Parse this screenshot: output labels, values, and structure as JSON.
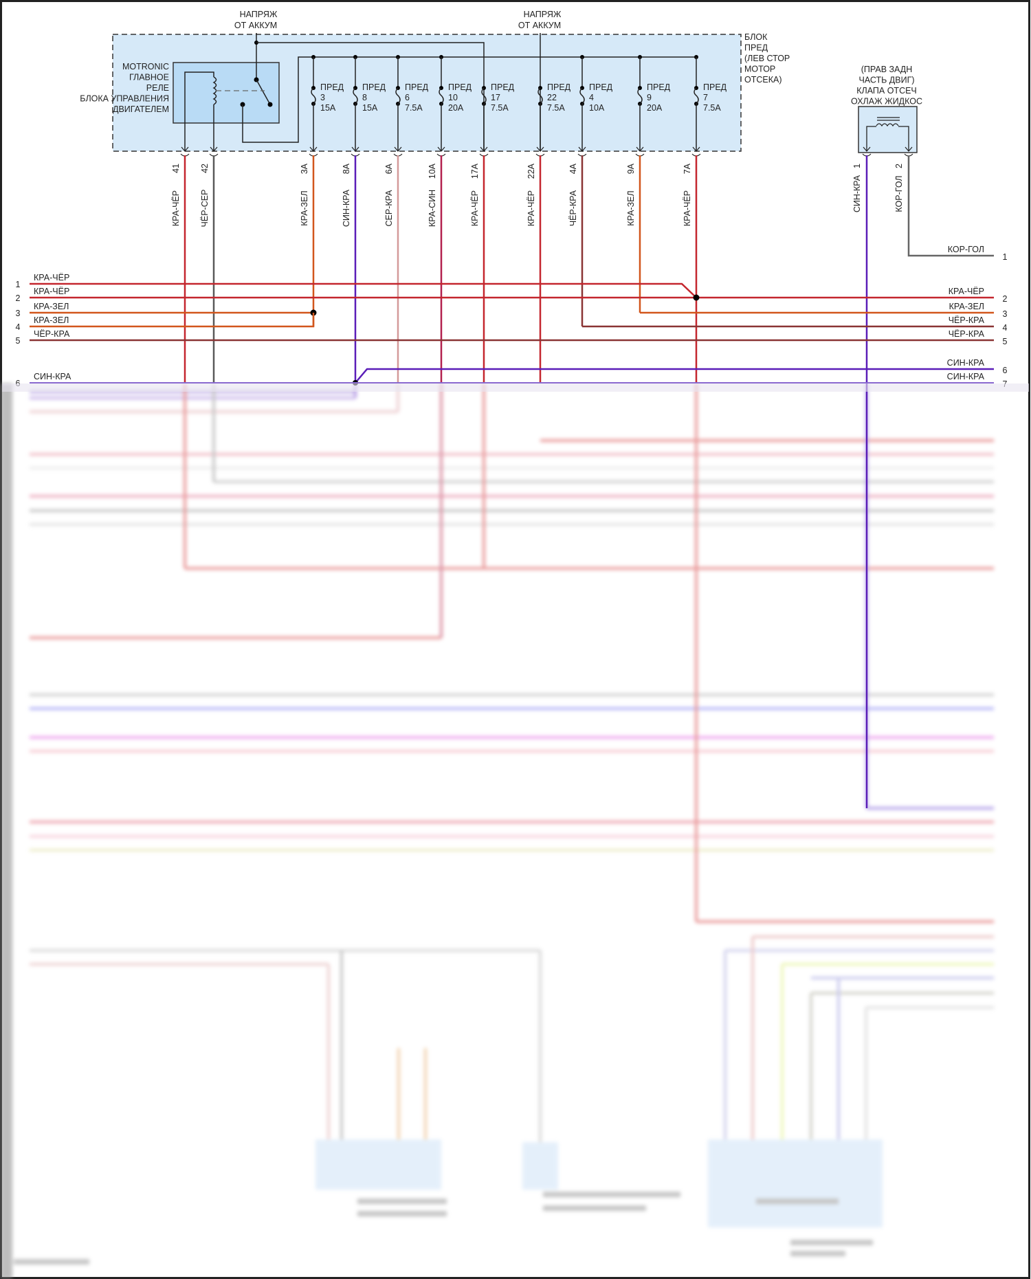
{
  "diagram": {
    "battery_feeds": [
      {
        "line1": "НАПРЯЖ",
        "line2": "ОТ АККУМ"
      },
      {
        "line1": "НАПРЯЖ",
        "line2": "ОТ АККУМ"
      }
    ],
    "relay_label": [
      "MOTRONIC",
      "ГЛАВНОЕ",
      "РЕЛЕ",
      "БЛОКА УПРАВЛЕНИЯ",
      "ДВИГАТЕЛЕМ"
    ],
    "fuse_block_label": [
      "БЛОК",
      "ПРЕД",
      "(ЛЕВ СТОР",
      "МОТОР",
      "ОТСЕКА)"
    ],
    "fuses": [
      {
        "name": "ПРЕД",
        "number": "3",
        "rating": "15A"
      },
      {
        "name": "ПРЕД",
        "number": "8",
        "rating": "15A"
      },
      {
        "name": "ПРЕД",
        "number": "6",
        "rating": "7.5A"
      },
      {
        "name": "ПРЕД",
        "number": "10",
        "rating": "20A"
      },
      {
        "name": "ПРЕД",
        "number": "17",
        "rating": "7.5A"
      },
      {
        "name": "ПРЕД",
        "number": "22",
        "rating": "7.5A"
      },
      {
        "name": "ПРЕД",
        "number": "4",
        "rating": "10A"
      },
      {
        "name": "ПРЕД",
        "number": "9",
        "rating": "20A"
      },
      {
        "name": "ПРЕД",
        "number": "7",
        "rating": "7.5A"
      }
    ],
    "block_wires": [
      {
        "pin": "41",
        "label": "КРА-ЧЁР",
        "color": "#c4262e"
      },
      {
        "pin": "42",
        "label": "ЧЁР-СЕР",
        "color": "#5a5a5a"
      },
      {
        "pin": "3A",
        "label": "КРА-ЗЕЛ",
        "color": "#d2561c"
      },
      {
        "pin": "8A",
        "label": "СИН-КРА",
        "color": "#5a1db8"
      },
      {
        "pin": "6A",
        "label": "СЕР-КРА",
        "color": "#d49a9a"
      },
      {
        "pin": "10A",
        "label": "КРА-СИН",
        "color": "#b3204e"
      },
      {
        "pin": "17A",
        "label": "КРА-ЧЁР",
        "color": "#c4262e"
      },
      {
        "pin": "22A",
        "label": "КРА-ЧЁР",
        "color": "#c4262e"
      },
      {
        "pin": "4A",
        "label": "ЧЁР-КРА",
        "color": "#8a3434"
      },
      {
        "pin": "9A",
        "label": "КРА-ЗЕЛ",
        "color": "#d2561c"
      },
      {
        "pin": "7A",
        "label": "КРА-ЧЁР",
        "color": "#c4262e"
      }
    ],
    "valve": {
      "label": [
        "(ПРАВ ЗАДН",
        "ЧАСТЬ ДВИГ)",
        "КЛАПА ОТСЕЧ",
        "ОХЛАЖ ЖИДКОС"
      ],
      "wires": [
        {
          "pin": "1",
          "label": "СИН-КРА",
          "color": "#5a1db8"
        },
        {
          "pin": "2",
          "label": "КОР-ГОЛ",
          "color": "#666666"
        }
      ]
    },
    "left_connector": [
      {
        "pin": "1",
        "label": "КРА-ЧЁР"
      },
      {
        "pin": "2",
        "label": "КРА-ЧЁР"
      },
      {
        "pin": "3",
        "label": "КРА-ЗЕЛ"
      },
      {
        "pin": "4",
        "label": "КРА-ЗЕЛ"
      },
      {
        "pin": "5",
        "label": "ЧЁР-КРА"
      },
      {
        "pin": "6",
        "label": "СИН-КРА"
      }
    ],
    "right_connector": [
      {
        "pin": "1",
        "label": "КОР-ГОЛ"
      },
      {
        "pin": "2",
        "label": "КРА-ЧЁР"
      },
      {
        "pin": "3",
        "label": "КРА-ЗЕЛ"
      },
      {
        "pin": "4",
        "label": "ЧЁР-КРА"
      },
      {
        "pin": "5",
        "label": "ЧЁР-КРА"
      },
      {
        "pin": "6",
        "label": "СИН-КРА"
      },
      {
        "pin": "7",
        "label": "СИН-КРА"
      }
    ],
    "colors": {
      "block_fill": "#d6e9f8",
      "relay_fill": "#b9dbf5",
      "border": "#333333"
    }
  }
}
